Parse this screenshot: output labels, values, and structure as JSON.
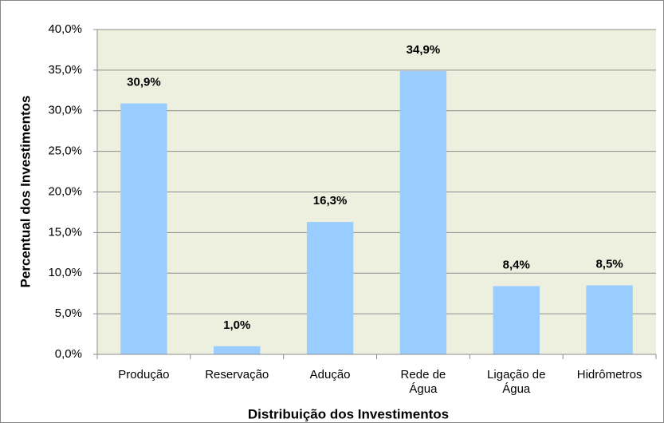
{
  "chart_data": {
    "type": "bar",
    "categories": [
      "Produção",
      "Reservação",
      "Adução",
      "Rede de Água",
      "Ligação de Água",
      "Hidrômetros"
    ],
    "values": [
      30.9,
      1.0,
      16.3,
      34.9,
      8.4,
      8.5
    ],
    "value_labels": [
      "30,9%",
      "1,0%",
      "16,3%",
      "34,9%",
      "8,4%",
      "8,5%"
    ],
    "color": "#99ccff",
    "x_label": "Distribuição dos Investimentos",
    "y_label": "Percentual dos Investimentos",
    "ylim": [
      0,
      40
    ],
    "yticks": [
      {
        "value": 0,
        "label": "0,0%"
      },
      {
        "value": 5,
        "label": "5,0%"
      },
      {
        "value": 10,
        "label": "10,0%"
      },
      {
        "value": 15,
        "label": "15,0%"
      },
      {
        "value": 20,
        "label": "20,0%"
      },
      {
        "value": 25,
        "label": "25,0%"
      },
      {
        "value": 30,
        "label": "30,0%"
      },
      {
        "value": 35,
        "label": "35,0%"
      },
      {
        "value": 40,
        "label": "40,0%"
      }
    ],
    "grid": true
  }
}
